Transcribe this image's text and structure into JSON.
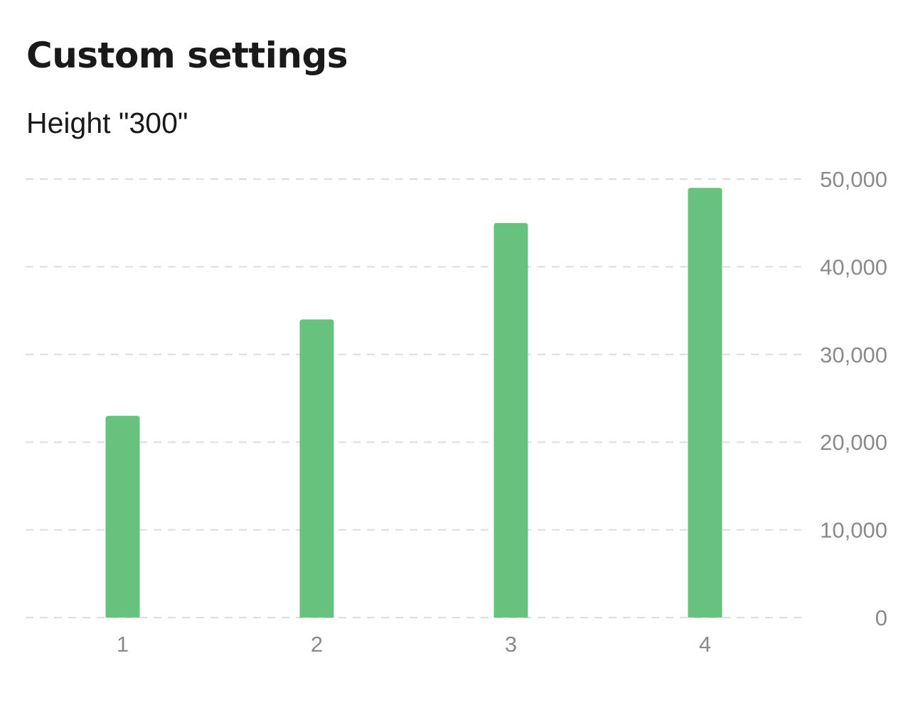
{
  "page": {
    "title": "Custom settings"
  },
  "chart_data": {
    "type": "bar",
    "subtitle": "Height \"300\"",
    "categories": [
      "1",
      "2",
      "3",
      "4"
    ],
    "values": [
      23000,
      34000,
      45000,
      49000
    ],
    "ylim": [
      0,
      50000
    ],
    "yticks": [
      0,
      10000,
      20000,
      30000,
      40000,
      50000
    ],
    "ytick_labels": [
      "0",
      "10,000",
      "20,000",
      "30,000",
      "40,000",
      "50,000"
    ],
    "y_axis_position": "right",
    "grid": true,
    "grid_style": "dashed",
    "bar_color": "#67c27d",
    "grid_color": "#dddddd",
    "tick_label_color": "#8a8a8a"
  }
}
